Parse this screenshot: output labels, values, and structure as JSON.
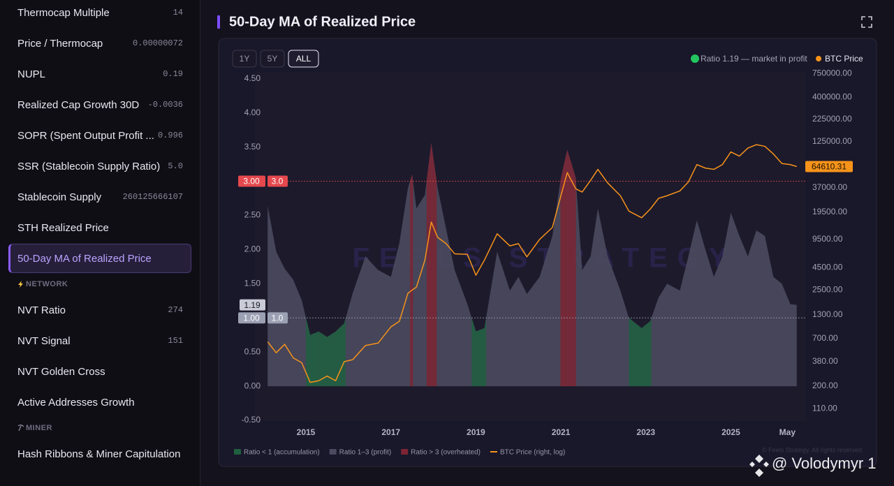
{
  "sidebar": {
    "items": [
      {
        "label": "Thermocap Multiple",
        "value": "14"
      },
      {
        "label": "Price / Thermocap",
        "value": "0.00000072"
      },
      {
        "label": "NUPL",
        "value": "0.19"
      },
      {
        "label": "Realized Cap Growth 30D",
        "value": "-0.0036"
      },
      {
        "label": "SOPR (Spent Output Profit ...",
        "value": "0.996"
      },
      {
        "label": "SSR (Stablecoin Supply Ratio)",
        "value": "5.0"
      },
      {
        "label": "Stablecoin Supply",
        "value": "260125666107"
      },
      {
        "label": "STH Realized Price"
      },
      {
        "label": "50-Day MA of Realized Price",
        "active": true
      },
      {
        "section": "NETWORK",
        "icon": "bolt"
      },
      {
        "label": "NVT Ratio",
        "value": "274"
      },
      {
        "label": "NVT Signal",
        "value": "151"
      },
      {
        "label": "NVT Golden Cross"
      },
      {
        "label": "Active Addresses Growth"
      },
      {
        "section": "MINER",
        "icon": "pick"
      },
      {
        "label": "Hash Ribbons & Miner Capitulation"
      }
    ]
  },
  "header": {
    "title": "50-Day MA of Realized Price"
  },
  "range_buttons": {
    "options": [
      "1Y",
      "5Y",
      "ALL"
    ],
    "active": 2
  },
  "status": {
    "text": "Ratio 1.19 — market in profit",
    "color": "#22c55e",
    "price_legend": "BTC Price",
    "price_color": "#f7931a"
  },
  "chart_data": {
    "type": "area_line",
    "watermark": "FEELS STRATEGY",
    "copyright": "© Feels Strategy. All rights reserved",
    "x": [
      2014.1,
      2014.3,
      2014.5,
      2014.7,
      2014.9,
      2015.1,
      2015.3,
      2015.5,
      2015.7,
      2015.9,
      2016.1,
      2016.4,
      2016.7,
      2017.0,
      2017.2,
      2017.4,
      2017.5,
      2017.6,
      2017.8,
      2017.95,
      2018.1,
      2018.3,
      2018.5,
      2018.8,
      2019.0,
      2019.2,
      2019.5,
      2019.8,
      2020.0,
      2020.2,
      2020.5,
      2020.8,
      2021.0,
      2021.15,
      2021.35,
      2021.5,
      2021.7,
      2021.87,
      2022.1,
      2022.4,
      2022.6,
      2022.9,
      2023.1,
      2023.3,
      2023.5,
      2023.8,
      2024.0,
      2024.2,
      2024.4,
      2024.6,
      2024.8,
      2025.0,
      2025.2,
      2025.4,
      2025.6,
      2025.8,
      2026.0,
      2026.2,
      2026.4,
      2026.55
    ],
    "series": [
      {
        "name": "Ratio 1–3 (profit)",
        "color": "#4b4a5e",
        "values": [
          2.64,
          1.97,
          1.72,
          1.56,
          1.26,
          0.75,
          0.8,
          0.72,
          0.8,
          0.92,
          1.36,
          1.9,
          1.7,
          1.6,
          2.1,
          2.9,
          3.1,
          2.6,
          2.8,
          3.56,
          2.9,
          2.3,
          1.7,
          1.2,
          0.8,
          0.85,
          1.97,
          1.4,
          1.6,
          1.35,
          1.6,
          2.2,
          3.05,
          3.46,
          3.05,
          1.7,
          1.9,
          2.6,
          1.9,
          1.4,
          1.0,
          0.85,
          0.95,
          1.3,
          1.5,
          1.4,
          1.9,
          2.43,
          2.0,
          1.6,
          1.9,
          2.54,
          2.2,
          1.9,
          2.28,
          2.2,
          1.6,
          1.5,
          1.2,
          1.19
        ]
      },
      {
        "name": "BTC Price (right, log)",
        "color": "#f7931a",
        "axis": "y2",
        "values": [
          640,
          480,
          600,
          420,
          370,
          220,
          230,
          260,
          230,
          380,
          400,
          580,
          620,
          950,
          1100,
          2300,
          2500,
          2700,
          5500,
          15000,
          10000,
          8500,
          6500,
          6400,
          3700,
          5500,
          11000,
          8000,
          8500,
          6000,
          9500,
          13000,
          30000,
          55000,
          36000,
          33000,
          45000,
          60000,
          42000,
          30000,
          20000,
          16800,
          21000,
          28000,
          30000,
          34000,
          43000,
          68000,
          62000,
          60000,
          68000,
          95000,
          85000,
          105000,
          115000,
          110000,
          90000,
          70000,
          68000,
          64610.31
        ]
      }
    ],
    "zones": [
      {
        "name": "Ratio < 1 (accumulation)",
        "color": "#1f6040",
        "below": 1
      },
      {
        "name": "Ratio > 3 (overheated)",
        "color": "#7d2433",
        "above": 3
      }
    ],
    "reference_lines": [
      {
        "value": 3,
        "tick_label": "3.00",
        "label": "3.0",
        "color": "#e5484d"
      },
      {
        "value": 1,
        "tick_label": "1.00",
        "label": "1.0",
        "color": "#9ca0b3"
      }
    ],
    "current_ratio": {
      "value": 1.19,
      "label": "1.19"
    },
    "current_price_label": "64610.31",
    "xlim": [
      2013.8,
      2026.62
    ],
    "xticks": [
      2015,
      2017,
      2019,
      2021,
      2023,
      2025,
      {
        "value": 2026.33,
        "label": "May"
      }
    ],
    "ylim": [
      -0.5,
      4.6
    ],
    "yticks": [
      {
        "value": -0.5,
        "label": "-0.50"
      },
      {
        "value": 0,
        "label": "0.00"
      },
      {
        "value": 0.5,
        "label": "0.50"
      },
      {
        "value": 1.5,
        "label": "1.50"
      },
      {
        "value": 2,
        "label": "2.00"
      },
      {
        "value": 2.5,
        "label": "2.50"
      },
      {
        "value": 3.5,
        "label": "3.50"
      },
      {
        "value": 4,
        "label": "4.00"
      },
      {
        "value": 4.5,
        "label": "4.50"
      }
    ],
    "y2lim": [
      81,
      780000
    ],
    "y2scale": "log",
    "y2ticks": [
      {
        "value": 110,
        "label": "110.00"
      },
      {
        "value": 200,
        "label": "200.00"
      },
      {
        "value": 380,
        "label": "380.00"
      },
      {
        "value": 700,
        "label": "700.00"
      },
      {
        "value": 1300,
        "label": "1300.00"
      },
      {
        "value": 2500,
        "label": "2500.00"
      },
      {
        "value": 4500,
        "label": "4500.00"
      },
      {
        "value": 9500,
        "label": "9500.00"
      },
      {
        "value": 19500,
        "label": "19500.00"
      },
      {
        "value": 37000,
        "label": "37000.00"
      },
      {
        "value": 125000,
        "label": "125000.00"
      },
      {
        "value": 225000,
        "label": "225000.00"
      },
      {
        "value": 400000,
        "label": "400000.00"
      },
      {
        "value": 750000,
        "label": "750000.00"
      }
    ],
    "grid": false
  },
  "overlay": {
    "text": "@ Volodymyr 1"
  }
}
